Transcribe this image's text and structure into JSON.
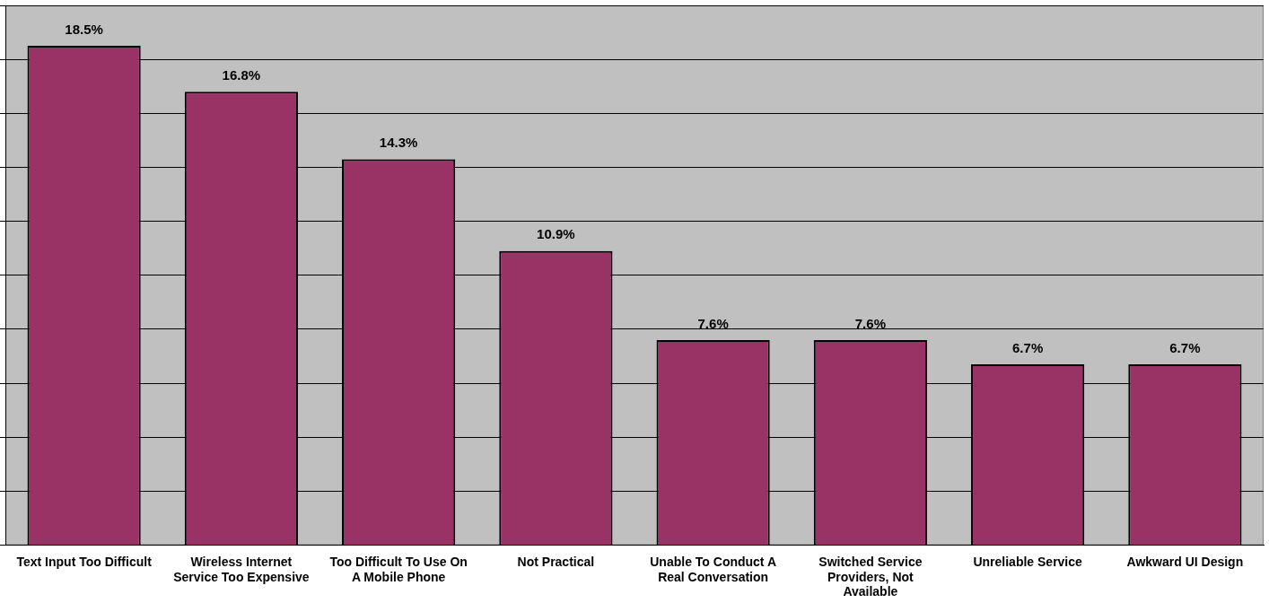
{
  "chart_data": {
    "type": "bar",
    "categories": [
      "Text Input Too Difficult",
      "Wireless Internet Service Too Expensive",
      "Too Difficult To Use On A Mobile Phone",
      "Not Practical",
      "Unable To Conduct A Real Conversation",
      "Switched Service Providers, Not Available",
      "Unreliable Service",
      "Awkward UI Design"
    ],
    "values": [
      18.5,
      16.8,
      14.3,
      10.9,
      7.6,
      7.6,
      6.7,
      6.7
    ],
    "value_labels": [
      "18.5%",
      "16.8%",
      "14.3%",
      "10.9%",
      "7.6%",
      "7.6%",
      "6.7%",
      "6.7%"
    ],
    "color": "#993366",
    "ylim": [
      0,
      20
    ],
    "yticks": [
      {
        "value": 0,
        "label": null
      },
      {
        "value": 2,
        "label": null
      },
      {
        "value": 4,
        "label": null
      },
      {
        "value": 6,
        "label": null
      },
      {
        "value": 8,
        "label": null
      },
      {
        "value": 10,
        "label": null
      },
      {
        "value": 12,
        "label": null
      },
      {
        "value": 14,
        "label": null
      },
      {
        "value": 16,
        "label": null
      },
      {
        "value": 18,
        "label": null
      },
      {
        "value": 20,
        "label": null
      }
    ],
    "grid": "y",
    "tick_labels": "x",
    "legend": false
  }
}
